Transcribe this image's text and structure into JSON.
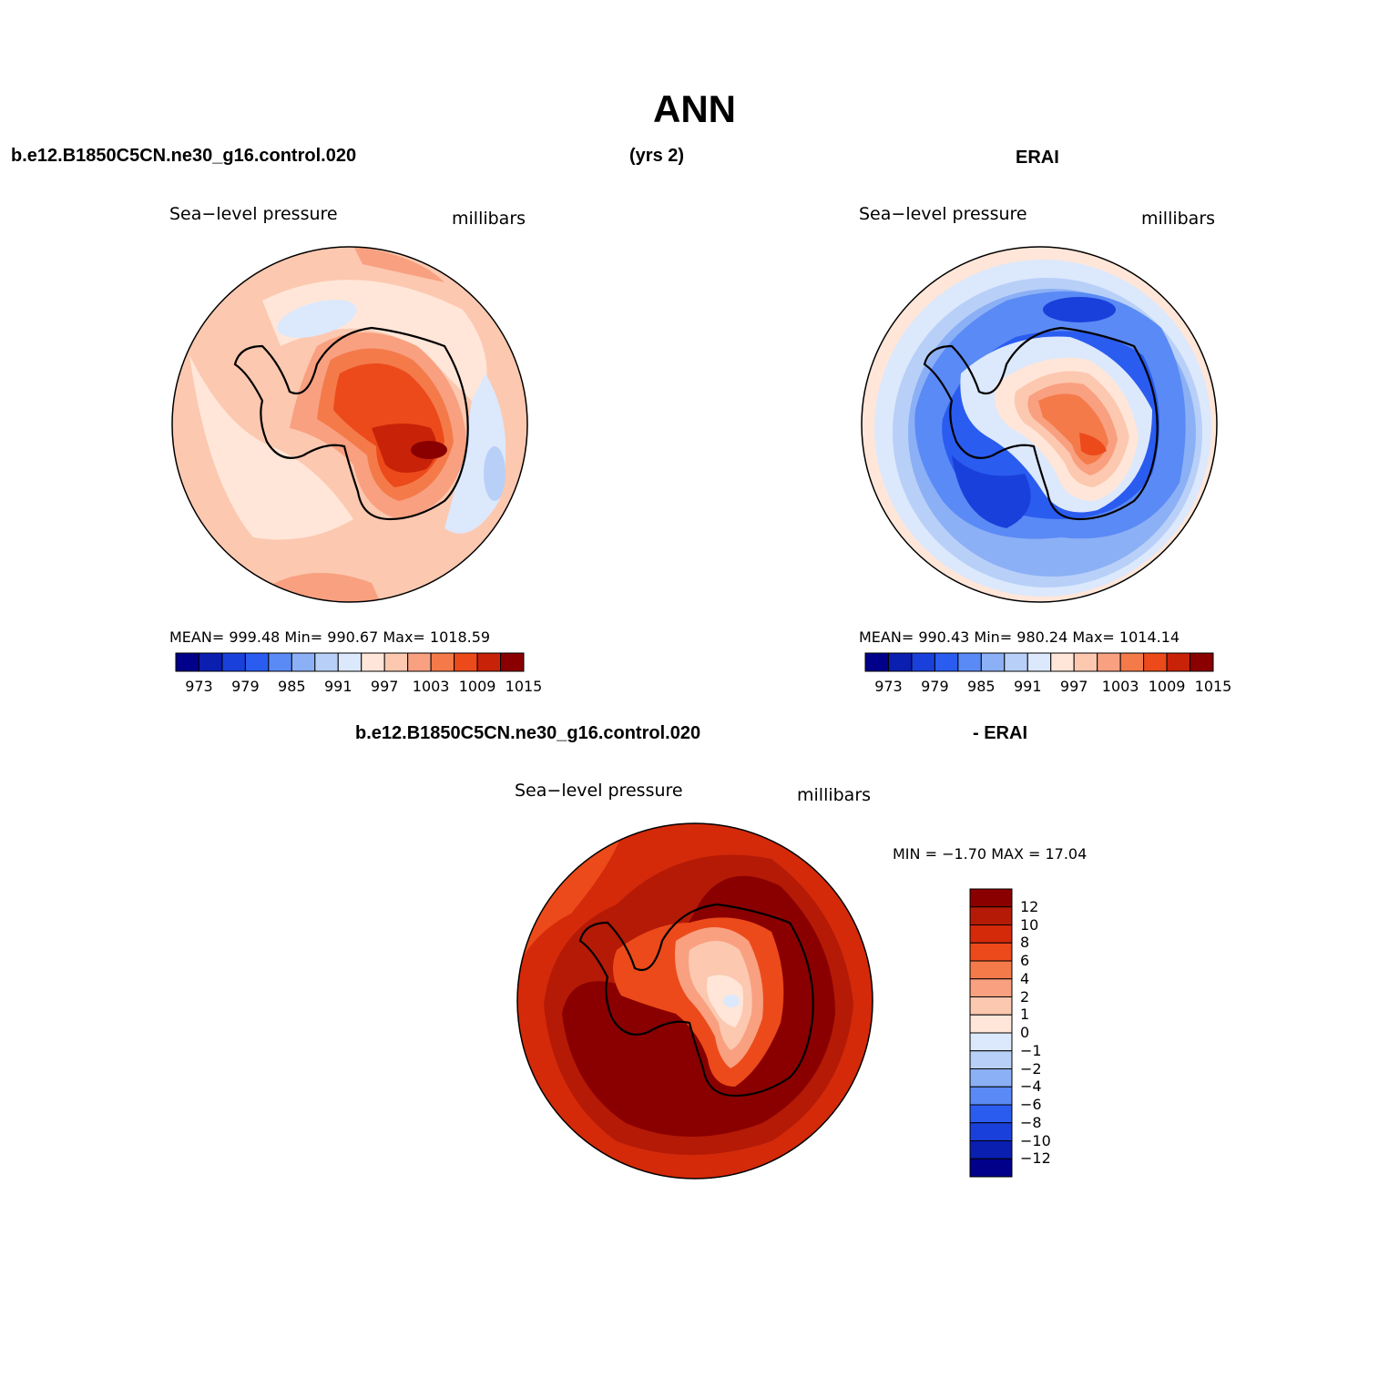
{
  "title": "ANN",
  "header": {
    "case_name": "b.e12.B1850C5CN.ne30_g16.control.020",
    "years": "(yrs 2)",
    "obs_name": "ERAI"
  },
  "diff_header": {
    "case_name": "b.e12.B1850C5CN.ne30_g16.control.020",
    "obs_name": "- ERAI"
  },
  "panels": {
    "model": {
      "variable": "Sea−level pressure",
      "units": "millibars",
      "stats": "MEAN= 999.48  Min= 990.67  Max= 1018.59"
    },
    "obs": {
      "variable": "Sea−level pressure",
      "units": "millibars",
      "stats": "MEAN= 990.43  Min= 980.24  Max= 1014.14"
    },
    "diff": {
      "variable": "Sea−level pressure",
      "units": "millibars",
      "stats": "MIN =   −1.70 MAX =   17.04"
    }
  },
  "colorbar_abs": {
    "colors": [
      "#00008a",
      "#0a1eb0",
      "#1a40db",
      "#2a5cf0",
      "#5a8af5",
      "#8cb0f5",
      "#b8d0f8",
      "#dce8fc",
      "#ffe6d8",
      "#fcc8b0",
      "#f8a080",
      "#f47a4a",
      "#ec4a1a",
      "#c82208",
      "#8a0000"
    ],
    "tick_labels": [
      "973",
      "979",
      "985",
      "991",
      "997",
      "1003",
      "1009",
      "1015"
    ]
  },
  "colorbar_diff": {
    "colors": [
      "#8a0000",
      "#b41a06",
      "#d42a0a",
      "#ec4a1a",
      "#f47a4a",
      "#f8a080",
      "#fcc8b0",
      "#ffe6d8",
      "#dce8fc",
      "#b8d0f8",
      "#8cb0f5",
      "#5a8af5",
      "#2a5cf0",
      "#1a40db",
      "#0a1eb0",
      "#00008a"
    ],
    "tick_labels": [
      "12",
      "10",
      "8",
      "6",
      "4",
      "2",
      "1",
      "0",
      "−1",
      "−2",
      "−4",
      "−6",
      "−8",
      "−10",
      "−12"
    ]
  }
}
